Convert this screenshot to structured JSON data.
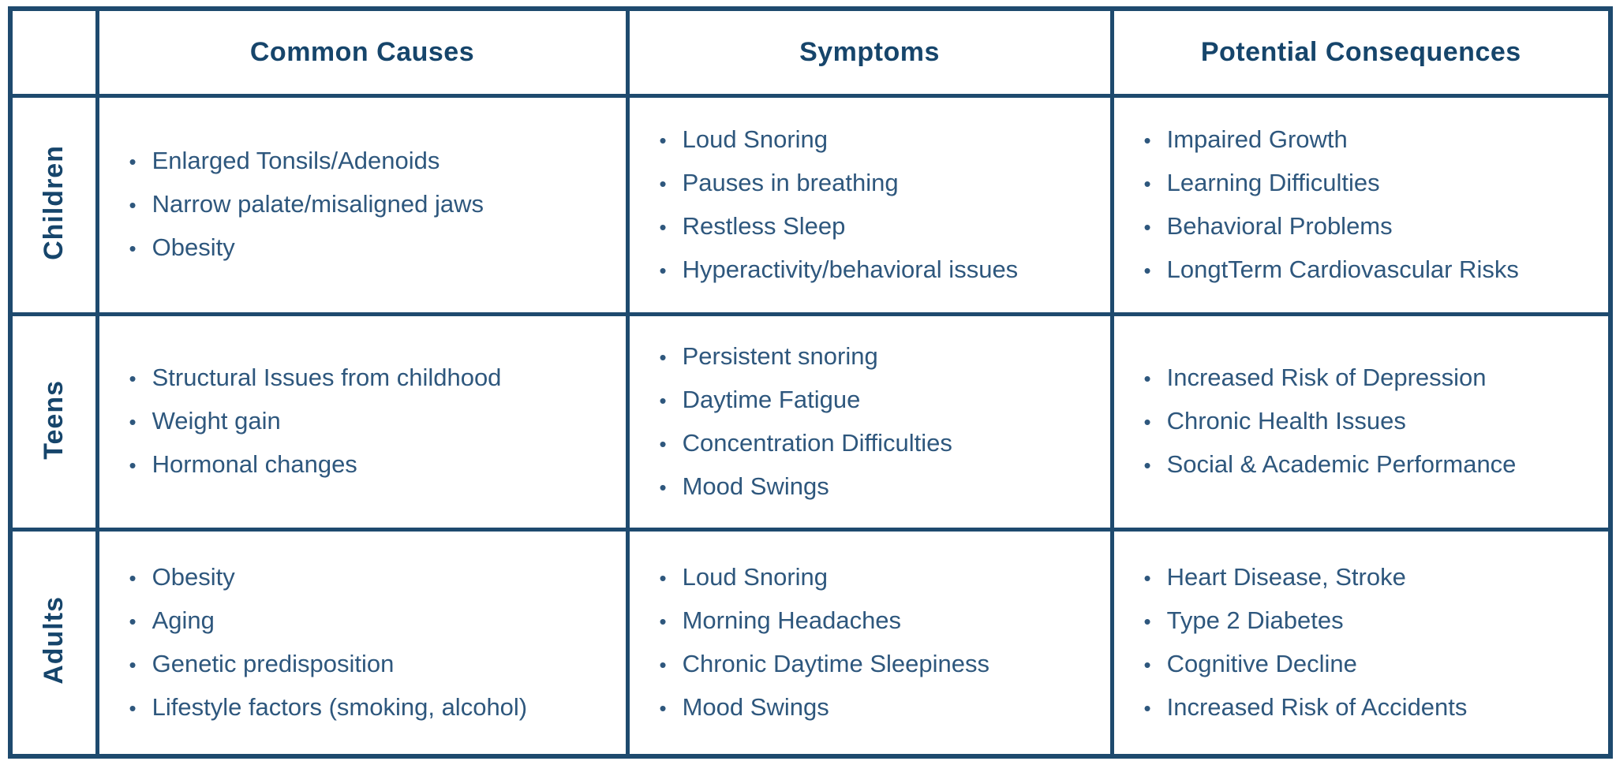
{
  "page": {
    "background": "#ffffff"
  },
  "table": {
    "bullet_glyph": "•",
    "colors": {
      "border": "#1e4a6e",
      "header_text": "#16456b",
      "body_text": "#2e577d",
      "background": "#ffffff"
    },
    "header": {
      "corner": "",
      "columns": [
        "Common Causes",
        "Symptoms",
        "Potential Consequences"
      ]
    },
    "rows": [
      {
        "label": "Children",
        "common_causes": [
          "Enlarged Tonsils/Adenoids",
          "Narrow palate/misaligned jaws",
          "Obesity"
        ],
        "symptoms": [
          "Loud Snoring",
          "Pauses in breathing",
          "Restless Sleep",
          "Hyperactivity/behavioral issues"
        ],
        "potential_consequences": [
          "Impaired Growth",
          "Learning Difficulties",
          "Behavioral Problems",
          "LongtTerm Cardiovascular Risks"
        ]
      },
      {
        "label": "Teens",
        "common_causes": [
          "Structural Issues from childhood",
          "Weight gain",
          "Hormonal changes"
        ],
        "symptoms": [
          "Persistent snoring",
          "Daytime Fatigue",
          "Concentration Difficulties",
          "Mood Swings"
        ],
        "potential_consequences": [
          "Increased Risk of Depression",
          "Chronic Health Issues",
          "Social & Academic Performance"
        ]
      },
      {
        "label": "Adults",
        "common_causes": [
          "Obesity",
          "Aging",
          "Genetic predisposition",
          "Lifestyle factors (smoking, alcohol)"
        ],
        "symptoms": [
          "Loud Snoring",
          "Morning Headaches",
          "Chronic Daytime Sleepiness",
          "Mood Swings"
        ],
        "potential_consequences": [
          "Heart Disease, Stroke",
          "Type 2 Diabetes",
          "Cognitive Decline",
          "Increased Risk of Accidents"
        ]
      }
    ]
  }
}
